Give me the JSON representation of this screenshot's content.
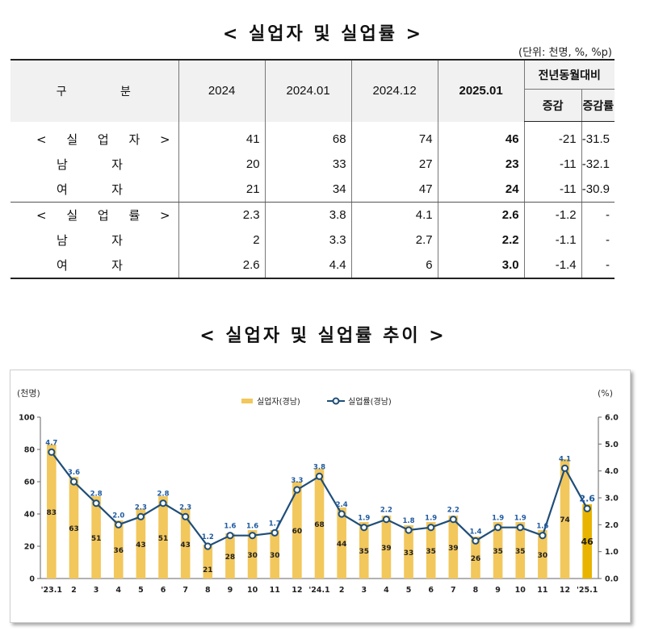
{
  "title_table": "< 실업자 및 실업률 >",
  "unit": "(단위: 천명, %, %p)",
  "table": {
    "header_category": "구          분",
    "periods": [
      "2024",
      "2024.01",
      "2024.12",
      "2025.01"
    ],
    "yoy_group": "전년동월대비",
    "yoy_change": "증감",
    "yoy_rate": "증감률",
    "rows": [
      {
        "label": "< 실 업 자 >",
        "values": [
          "41",
          "68",
          "74",
          "46",
          "-21",
          "-31.5"
        ]
      },
      {
        "label": "남   자",
        "values": [
          "20",
          "33",
          "27",
          "23",
          "-11",
          "-32.1"
        ]
      },
      {
        "label": "여   자",
        "values": [
          "21",
          "34",
          "47",
          "24",
          "-11",
          "-30.9"
        ]
      },
      {
        "label": "< 실 업 률 >",
        "values": [
          "2.3",
          "3.8",
          "4.1",
          "2.6",
          "-1.2",
          "-"
        ]
      },
      {
        "label": "남   자",
        "values": [
          "2",
          "3.3",
          "2.7",
          "2.2",
          "-1.1",
          "-"
        ]
      },
      {
        "label": "여   자",
        "values": [
          "2.6",
          "4.4",
          "6",
          "3.0",
          "-1.4",
          "-"
        ]
      }
    ]
  },
  "title_chart": "< 실업자 및 실업률 추이 >",
  "chart_data": {
    "type": "bar+line",
    "left_unit": "(천명)",
    "right_unit": "(%)",
    "left_axis": {
      "min": 0,
      "max": 100,
      "ticks": [
        "0",
        "20",
        "40",
        "60",
        "80",
        "100"
      ]
    },
    "right_axis": {
      "min": 0,
      "max": 6,
      "ticks": [
        "0.0",
        "1.0",
        "2.0",
        "3.0",
        "4.0",
        "5.0",
        "6.0"
      ]
    },
    "categories": [
      "'23.1",
      "2",
      "3",
      "4",
      "5",
      "6",
      "7",
      "8",
      "9",
      "10",
      "11",
      "12",
      "'24.1",
      "2",
      "3",
      "4",
      "5",
      "6",
      "7",
      "8",
      "9",
      "10",
      "11",
      "12",
      "'25.1"
    ],
    "series": [
      {
        "name": "실업자(경남)",
        "kind": "bar",
        "axis": "left",
        "values": [
          83,
          63,
          51,
          36,
          43,
          51,
          43,
          21,
          28,
          30,
          30,
          60,
          68,
          44,
          35,
          39,
          33,
          35,
          39,
          26,
          35,
          35,
          30,
          74,
          46
        ],
        "labels": [
          "83",
          "63",
          "51",
          "36",
          "43",
          "51",
          "43",
          "21",
          "28",
          "30",
          "30",
          "60",
          "68",
          "44",
          "35",
          "39",
          "33",
          "35",
          "39",
          "26",
          "35",
          "35",
          "30",
          "74",
          "46"
        ]
      },
      {
        "name": "실업률(경남)",
        "kind": "line",
        "axis": "right",
        "values": [
          4.7,
          3.6,
          2.8,
          2.0,
          2.3,
          2.8,
          2.3,
          1.2,
          1.6,
          1.6,
          1.7,
          3.3,
          3.8,
          2.4,
          1.9,
          2.2,
          1.8,
          1.9,
          2.2,
          1.4,
          1.9,
          1.9,
          1.6,
          4.1,
          2.6
        ],
        "labels": [
          "4.7",
          "3.6",
          "2.8",
          "2.0",
          "2.3",
          "2.8",
          "2.3",
          "1.2",
          "1.6",
          "1.6",
          "1.7",
          "3.3",
          "3.8",
          "2.4",
          "1.9",
          "2.2",
          "1.8",
          "1.9",
          "2.2",
          "1.4",
          "1.9",
          "1.9",
          "1.6",
          "4.1",
          "2.6"
        ]
      }
    ],
    "colors": {
      "bar": "#f2c75c",
      "bar_last": "#e8b400",
      "line": "#1f4e79",
      "label": "#1f5aa0"
    },
    "legend_position": "top-center",
    "grid": false
  }
}
